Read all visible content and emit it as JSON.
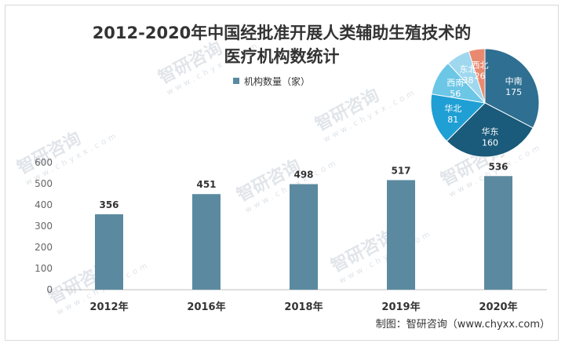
{
  "chart_data": [
    {
      "type": "bar",
      "title_lines": [
        "2012-2020年中国经批准开展人类辅助生殖技术的",
        "医疗机构数统计"
      ],
      "legend": "机构数量（家）",
      "categories": [
        "2012年",
        "2016年",
        "2018年",
        "2019年",
        "2020年"
      ],
      "values": [
        356,
        451,
        498,
        517,
        536
      ],
      "y_ticks": [
        "0",
        "100",
        "200",
        "300",
        "400",
        "500",
        "600"
      ],
      "ylim": [
        0,
        600
      ],
      "grid": false,
      "color": "#5b8aa0"
    },
    {
      "type": "pie",
      "slices": [
        {
          "name": "中南",
          "value": 175,
          "color": "#2e6f92"
        },
        {
          "name": "华东",
          "value": 160,
          "color": "#1a5a7a"
        },
        {
          "name": "华北",
          "value": 81,
          "color": "#1f9fd4"
        },
        {
          "name": "西南",
          "value": 56,
          "color": "#6cc6e6"
        },
        {
          "name": "东北",
          "value": 38,
          "color": "#9fd8ee"
        },
        {
          "name": "西北",
          "value": 26,
          "color": "#e98a70"
        }
      ]
    }
  ],
  "source": "制图：智研咨询（www.chyxx.com）",
  "watermark": {
    "text": "智研咨询",
    "url": "www.chyxx.com"
  }
}
